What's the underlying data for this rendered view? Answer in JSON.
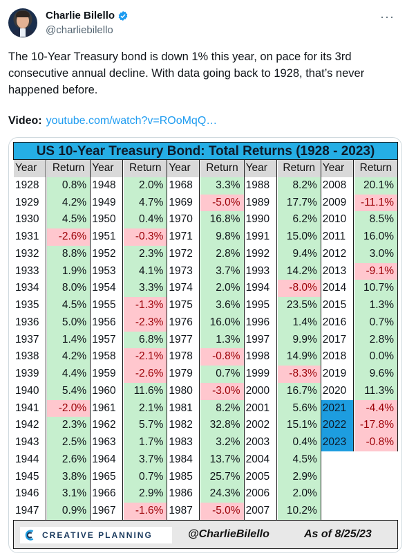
{
  "author": {
    "name": "Charlie Bilello",
    "handle": "@charliebilello"
  },
  "tweet": {
    "text": "The 10-Year Treasury bond is down 1% this year, on pace for its 3rd consecutive annual decline. With data going back to 1928, that’s never happened before.",
    "video_label": "Video:",
    "video_link": "youtube.com/watch?v=ROoMqQ…"
  },
  "table": {
    "title": "US 10-Year Treasury Bond: Total Returns (1928 - 2023)",
    "header_year": "Year",
    "header_return": "Return",
    "columns": [
      [
        [
          "1928",
          "0.8%"
        ],
        [
          "1929",
          "4.2%"
        ],
        [
          "1930",
          "4.5%"
        ],
        [
          "1931",
          "-2.6%"
        ],
        [
          "1932",
          "8.8%"
        ],
        [
          "1933",
          "1.9%"
        ],
        [
          "1934",
          "8.0%"
        ],
        [
          "1935",
          "4.5%"
        ],
        [
          "1936",
          "5.0%"
        ],
        [
          "1937",
          "1.4%"
        ],
        [
          "1938",
          "4.2%"
        ],
        [
          "1939",
          "4.4%"
        ],
        [
          "1940",
          "5.4%"
        ],
        [
          "1941",
          "-2.0%"
        ],
        [
          "1942",
          "2.3%"
        ],
        [
          "1943",
          "2.5%"
        ],
        [
          "1944",
          "2.6%"
        ],
        [
          "1945",
          "3.8%"
        ],
        [
          "1946",
          "3.1%"
        ],
        [
          "1947",
          "0.9%"
        ]
      ],
      [
        [
          "1948",
          "2.0%"
        ],
        [
          "1949",
          "4.7%"
        ],
        [
          "1950",
          "0.4%"
        ],
        [
          "1951",
          "-0.3%"
        ],
        [
          "1952",
          "2.3%"
        ],
        [
          "1953",
          "4.1%"
        ],
        [
          "1954",
          "3.3%"
        ],
        [
          "1955",
          "-1.3%"
        ],
        [
          "1956",
          "-2.3%"
        ],
        [
          "1957",
          "6.8%"
        ],
        [
          "1958",
          "-2.1%"
        ],
        [
          "1959",
          "-2.6%"
        ],
        [
          "1960",
          "11.6%"
        ],
        [
          "1961",
          "2.1%"
        ],
        [
          "1962",
          "5.7%"
        ],
        [
          "1963",
          "1.7%"
        ],
        [
          "1964",
          "3.7%"
        ],
        [
          "1965",
          "0.7%"
        ],
        [
          "1966",
          "2.9%"
        ],
        [
          "1967",
          "-1.6%"
        ]
      ],
      [
        [
          "1968",
          "3.3%"
        ],
        [
          "1969",
          "-5.0%"
        ],
        [
          "1970",
          "16.8%"
        ],
        [
          "1971",
          "9.8%"
        ],
        [
          "1972",
          "2.8%"
        ],
        [
          "1973",
          "3.7%"
        ],
        [
          "1974",
          "2.0%"
        ],
        [
          "1975",
          "3.6%"
        ],
        [
          "1976",
          "16.0%"
        ],
        [
          "1977",
          "1.3%"
        ],
        [
          "1978",
          "-0.8%"
        ],
        [
          "1979",
          "0.7%"
        ],
        [
          "1980",
          "-3.0%"
        ],
        [
          "1981",
          "8.2%"
        ],
        [
          "1982",
          "32.8%"
        ],
        [
          "1983",
          "3.2%"
        ],
        [
          "1984",
          "13.7%"
        ],
        [
          "1985",
          "25.7%"
        ],
        [
          "1986",
          "24.3%"
        ],
        [
          "1987",
          "-5.0%"
        ]
      ],
      [
        [
          "1988",
          "8.2%"
        ],
        [
          "1989",
          "17.7%"
        ],
        [
          "1990",
          "6.2%"
        ],
        [
          "1991",
          "15.0%"
        ],
        [
          "1992",
          "9.4%"
        ],
        [
          "1993",
          "14.2%"
        ],
        [
          "1994",
          "-8.0%"
        ],
        [
          "1995",
          "23.5%"
        ],
        [
          "1996",
          "1.4%"
        ],
        [
          "1997",
          "9.9%"
        ],
        [
          "1998",
          "14.9%"
        ],
        [
          "1999",
          "-8.3%"
        ],
        [
          "2000",
          "16.7%"
        ],
        [
          "2001",
          "5.6%"
        ],
        [
          "2002",
          "15.1%"
        ],
        [
          "2003",
          "0.4%"
        ],
        [
          "2004",
          "4.5%"
        ],
        [
          "2005",
          "2.9%"
        ],
        [
          "2006",
          "2.0%"
        ],
        [
          "2007",
          "10.2%"
        ]
      ],
      [
        [
          "2008",
          "20.1%"
        ],
        [
          "2009",
          "-11.1%"
        ],
        [
          "2010",
          "8.5%"
        ],
        [
          "2011",
          "16.0%"
        ],
        [
          "2012",
          "3.0%"
        ],
        [
          "2013",
          "-9.1%"
        ],
        [
          "2014",
          "10.7%"
        ],
        [
          "2015",
          "1.3%"
        ],
        [
          "2016",
          "0.7%"
        ],
        [
          "2017",
          "2.8%"
        ],
        [
          "2018",
          "0.0%"
        ],
        [
          "2019",
          "9.6%"
        ],
        [
          "2020",
          "11.3%"
        ],
        [
          "2021",
          "-4.4%"
        ],
        [
          "2022",
          "-17.8%"
        ],
        [
          "2023",
          "-0.8%"
        ]
      ]
    ],
    "highlight_years": [
      "2021",
      "2022",
      "2023"
    ],
    "negative_color": "#ffc7ce",
    "positive_color": "#c6efce",
    "highlight_color": "#1d9de0"
  },
  "footer": {
    "logo_text": "CREATIVE PLANNING",
    "handle": "@CharlieBilello",
    "date": "As of 8/25/23"
  },
  "icons": {
    "verified": "verified-badge-icon",
    "more": "more-options-icon",
    "logo": "creative-planning-logo-icon"
  }
}
